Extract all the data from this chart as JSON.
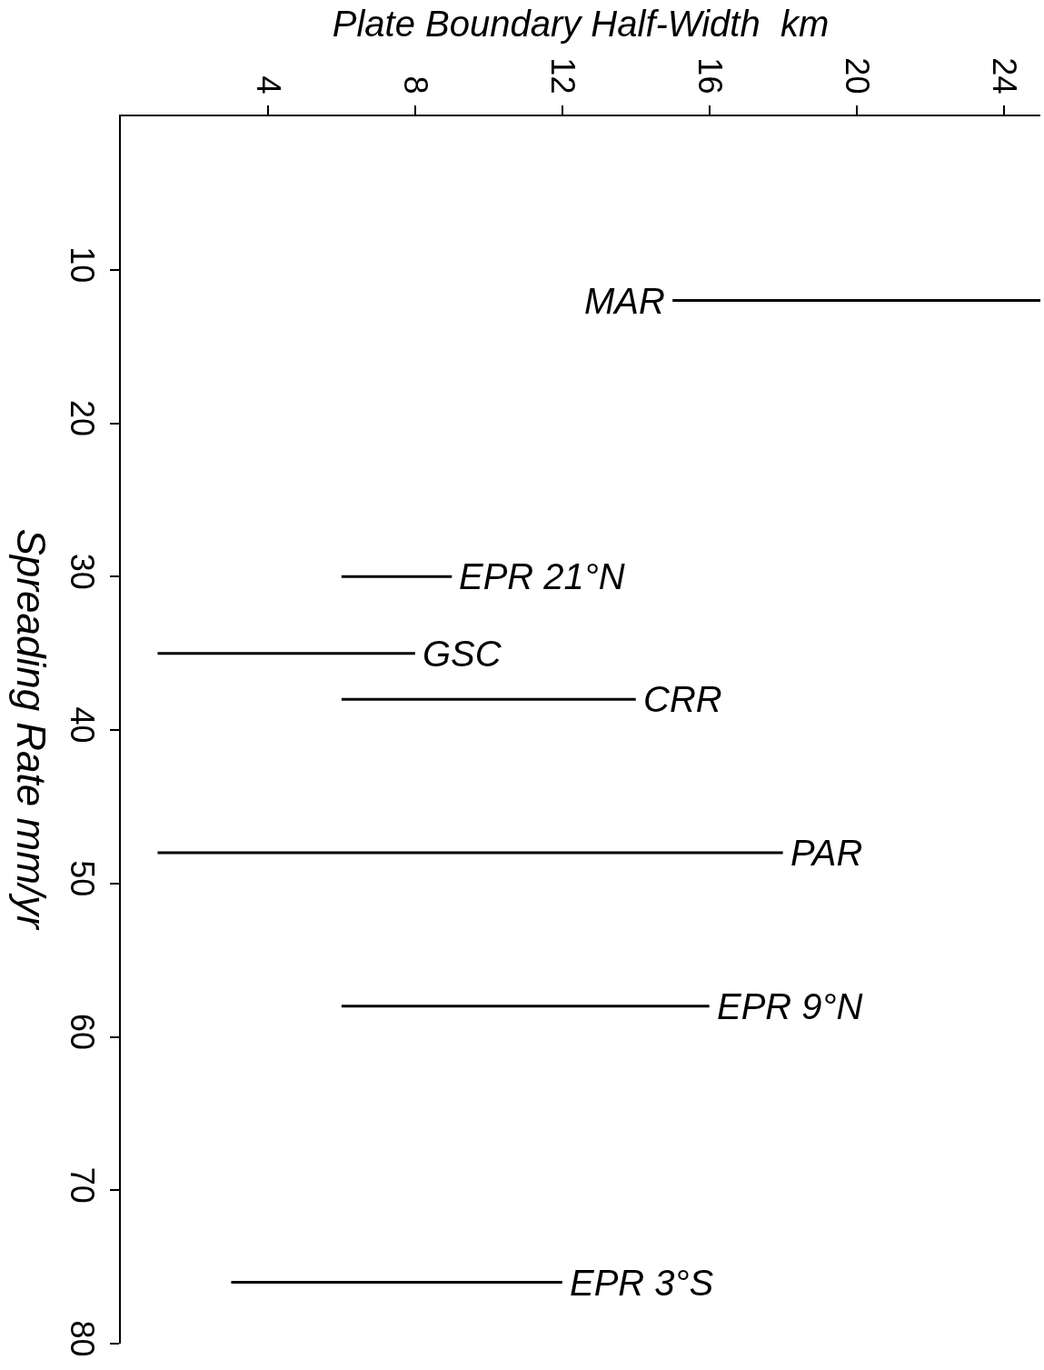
{
  "chart_data": {
    "type": "line",
    "xlabel": "Plate Boundary Half-Width  km",
    "ylabel": "Spreading Rate mm/yr",
    "xlim": [
      0,
      25
    ],
    "xticks": [
      4,
      8,
      12,
      16,
      20,
      24
    ],
    "ylim": [
      80,
      0
    ],
    "yticks": [
      10,
      20,
      30,
      40,
      50,
      60,
      70,
      80
    ],
    "marker": "none",
    "line_style": "solid",
    "series": [
      {
        "name": "MAR",
        "color": "#000000",
        "x": [
          15,
          25
        ],
        "values": [
          12,
          12
        ]
      },
      {
        "name": "EPR 21°N",
        "color": "#000000",
        "x": [
          6,
          9
        ],
        "values": [
          30,
          30
        ]
      },
      {
        "name": "GSC",
        "color": "#000000",
        "x": [
          1,
          8
        ],
        "values": [
          35,
          35
        ]
      },
      {
        "name": "CRR",
        "color": "#000000",
        "x": [
          6,
          14
        ],
        "values": [
          38,
          38
        ]
      },
      {
        "name": "PAR",
        "color": "#000000",
        "x": [
          1,
          18
        ],
        "values": [
          48,
          48
        ]
      },
      {
        "name": "EPR 9°N",
        "color": "#000000",
        "x": [
          6,
          16
        ],
        "values": [
          58,
          58
        ]
      },
      {
        "name": "EPR 3°S",
        "color": "#000000",
        "x": [
          3,
          12
        ],
        "values": [
          76,
          76
        ]
      }
    ]
  }
}
